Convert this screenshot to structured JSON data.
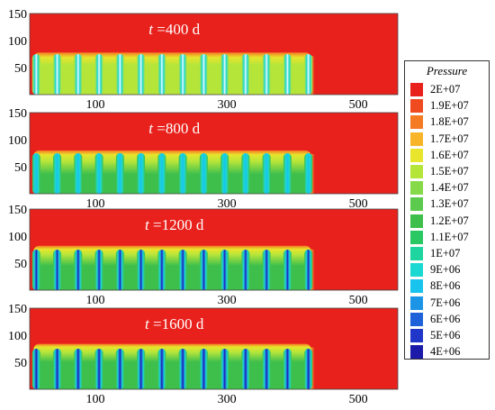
{
  "chart_data": {
    "type": "heatmap",
    "xlim": [
      0,
      560
    ],
    "ylim": [
      0,
      150
    ],
    "x_ticks": [
      "100",
      "300",
      "500"
    ],
    "x_tick_values": [
      100,
      300,
      500
    ],
    "y_ticks": [
      "150",
      "100",
      "50"
    ],
    "y_tick_values": [
      150,
      100,
      50
    ],
    "panels": [
      {
        "label": "t =400 d",
        "time_days": 400
      },
      {
        "label": "t =800 d",
        "time_days": 800
      },
      {
        "label": "t =1200 d",
        "time_days": 1200
      },
      {
        "label": "t =1600 d",
        "time_days": 1600
      }
    ],
    "fracture_count": 14,
    "fracture_x_start": 10,
    "fracture_x_end": 424,
    "fracture_height": 75,
    "legend": {
      "title": "Pressure",
      "placement": "right",
      "entries": [
        {
          "label": "2E+07",
          "color": "#e8211c"
        },
        {
          "label": "1.9E+07",
          "color": "#ef4a20"
        },
        {
          "label": "1.8E+07",
          "color": "#f47a24"
        },
        {
          "label": "1.7E+07",
          "color": "#f8b52a"
        },
        {
          "label": "1.6E+07",
          "color": "#e8e52c"
        },
        {
          "label": "1.5E+07",
          "color": "#b6e53a"
        },
        {
          "label": "1.4E+07",
          "color": "#86d948"
        },
        {
          "label": "1.3E+07",
          "color": "#5cca4c"
        },
        {
          "label": "1.2E+07",
          "color": "#3ebf4c"
        },
        {
          "label": "1.1E+07",
          "color": "#2ac862"
        },
        {
          "label": "1E+07",
          "color": "#1ed5a0"
        },
        {
          "label": "9E+06",
          "color": "#1cd8d2"
        },
        {
          "label": "8E+06",
          "color": "#18c3ee"
        },
        {
          "label": "7E+06",
          "color": "#1d95e6"
        },
        {
          "label": "6E+06",
          "color": "#1e62d9"
        },
        {
          "label": "5E+06",
          "color": "#1f36c8"
        },
        {
          "label": "4E+06",
          "color": "#1c1aa8"
        }
      ]
    }
  }
}
